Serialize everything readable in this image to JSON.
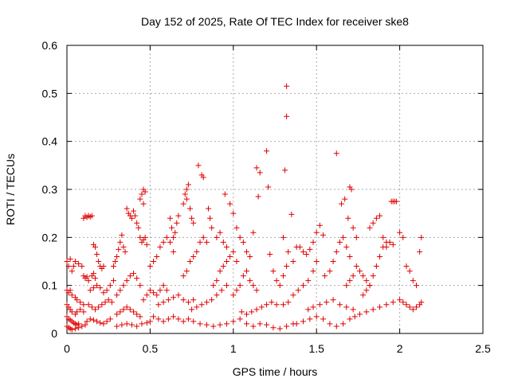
{
  "chart_data": {
    "type": "scatter",
    "title": "Day 152 of 2025, Rate Of TEC Index for receiver ske8",
    "xlabel": "GPS time / hours",
    "ylabel": "ROTI / TECUs",
    "xlim": [
      0,
      2.5
    ],
    "ylim": [
      0,
      0.6
    ],
    "xticks": [
      0,
      0.5,
      1,
      1.5,
      2,
      2.5
    ],
    "xtick_labels": [
      "0",
      "0.5",
      "1",
      "1.5",
      "2",
      "2.5"
    ],
    "yticks": [
      0,
      0.1,
      0.2,
      0.3,
      0.4,
      0.5,
      0.6
    ],
    "ytick_labels": [
      "0",
      "0.1",
      "0.2",
      "0.3",
      "0.4",
      "0.5",
      "0.6"
    ],
    "grid": true,
    "marker": "+",
    "color": "#e00000",
    "points": [
      [
        0.0,
        0.15
      ],
      [
        0.01,
        0.14
      ],
      [
        0.02,
        0.155
      ],
      [
        0.03,
        0.13
      ],
      [
        0.04,
        0.14
      ],
      [
        0.05,
        0.15
      ],
      [
        0.07,
        0.145
      ],
      [
        0.09,
        0.14
      ],
      [
        0.0,
        0.09
      ],
      [
        0.01,
        0.085
      ],
      [
        0.02,
        0.09
      ],
      [
        0.03,
        0.08
      ],
      [
        0.05,
        0.075
      ],
      [
        0.06,
        0.07
      ],
      [
        0.08,
        0.065
      ],
      [
        0.1,
        0.06
      ],
      [
        0.0,
        0.06
      ],
      [
        0.01,
        0.055
      ],
      [
        0.02,
        0.05
      ],
      [
        0.03,
        0.045
      ],
      [
        0.05,
        0.04
      ],
      [
        0.06,
        0.045
      ],
      [
        0.08,
        0.05
      ],
      [
        0.1,
        0.045
      ],
      [
        0.0,
        0.035
      ],
      [
        0.01,
        0.03
      ],
      [
        0.02,
        0.028
      ],
      [
        0.03,
        0.025
      ],
      [
        0.04,
        0.022
      ],
      [
        0.05,
        0.02
      ],
      [
        0.06,
        0.018
      ],
      [
        0.07,
        0.02
      ],
      [
        0.0,
        0.015
      ],
      [
        0.01,
        0.012
      ],
      [
        0.02,
        0.01
      ],
      [
        0.03,
        0.008
      ],
      [
        0.05,
        0.01
      ],
      [
        0.07,
        0.012
      ],
      [
        0.09,
        0.015
      ],
      [
        0.11,
        0.018
      ],
      [
        0.12,
        0.025
      ],
      [
        0.14,
        0.03
      ],
      [
        0.16,
        0.028
      ],
      [
        0.18,
        0.025
      ],
      [
        0.2,
        0.022
      ],
      [
        0.22,
        0.02
      ],
      [
        0.24,
        0.025
      ],
      [
        0.26,
        0.03
      ],
      [
        0.1,
        0.24
      ],
      [
        0.11,
        0.245
      ],
      [
        0.12,
        0.242
      ],
      [
        0.13,
        0.245
      ],
      [
        0.14,
        0.243
      ],
      [
        0.15,
        0.245
      ],
      [
        0.1,
        0.12
      ],
      [
        0.11,
        0.115
      ],
      [
        0.12,
        0.118
      ],
      [
        0.13,
        0.11
      ],
      [
        0.15,
        0.12
      ],
      [
        0.16,
        0.125
      ],
      [
        0.17,
        0.115
      ],
      [
        0.16,
        0.185
      ],
      [
        0.17,
        0.18
      ],
      [
        0.18,
        0.165
      ],
      [
        0.19,
        0.15
      ],
      [
        0.2,
        0.14
      ],
      [
        0.21,
        0.135
      ],
      [
        0.22,
        0.14
      ],
      [
        0.14,
        0.09
      ],
      [
        0.16,
        0.095
      ],
      [
        0.18,
        0.1
      ],
      [
        0.2,
        0.095
      ],
      [
        0.22,
        0.085
      ],
      [
        0.24,
        0.09
      ],
      [
        0.26,
        0.1
      ],
      [
        0.28,
        0.11
      ],
      [
        0.13,
        0.06
      ],
      [
        0.15,
        0.055
      ],
      [
        0.17,
        0.05
      ],
      [
        0.19,
        0.055
      ],
      [
        0.21,
        0.06
      ],
      [
        0.23,
        0.065
      ],
      [
        0.25,
        0.07
      ],
      [
        0.27,
        0.065
      ],
      [
        0.28,
        0.14
      ],
      [
        0.29,
        0.15
      ],
      [
        0.3,
        0.16
      ],
      [
        0.31,
        0.175
      ],
      [
        0.32,
        0.19
      ],
      [
        0.33,
        0.205
      ],
      [
        0.34,
        0.18
      ],
      [
        0.35,
        0.17
      ],
      [
        0.36,
        0.26
      ],
      [
        0.37,
        0.25
      ],
      [
        0.38,
        0.245
      ],
      [
        0.39,
        0.24
      ],
      [
        0.4,
        0.255
      ],
      [
        0.41,
        0.245
      ],
      [
        0.42,
        0.23
      ],
      [
        0.43,
        0.22
      ],
      [
        0.44,
        0.28
      ],
      [
        0.45,
        0.29
      ],
      [
        0.46,
        0.3
      ],
      [
        0.47,
        0.295
      ],
      [
        0.46,
        0.27
      ],
      [
        0.44,
        0.2
      ],
      [
        0.45,
        0.19
      ],
      [
        0.46,
        0.195
      ],
      [
        0.47,
        0.2
      ],
      [
        0.48,
        0.185
      ],
      [
        0.3,
        0.08
      ],
      [
        0.32,
        0.09
      ],
      [
        0.34,
        0.1
      ],
      [
        0.36,
        0.11
      ],
      [
        0.38,
        0.12
      ],
      [
        0.4,
        0.125
      ],
      [
        0.42,
        0.115
      ],
      [
        0.44,
        0.1
      ],
      [
        0.3,
        0.04
      ],
      [
        0.32,
        0.045
      ],
      [
        0.34,
        0.05
      ],
      [
        0.36,
        0.055
      ],
      [
        0.38,
        0.05
      ],
      [
        0.4,
        0.045
      ],
      [
        0.42,
        0.04
      ],
      [
        0.44,
        0.035
      ],
      [
        0.3,
        0.015
      ],
      [
        0.33,
        0.018
      ],
      [
        0.36,
        0.02
      ],
      [
        0.39,
        0.018
      ],
      [
        0.42,
        0.015
      ],
      [
        0.45,
        0.02
      ],
      [
        0.48,
        0.022
      ],
      [
        0.5,
        0.025
      ],
      [
        0.46,
        0.07
      ],
      [
        0.48,
        0.08
      ],
      [
        0.5,
        0.09
      ],
      [
        0.52,
        0.085
      ],
      [
        0.54,
        0.08
      ],
      [
        0.56,
        0.09
      ],
      [
        0.58,
        0.1
      ],
      [
        0.6,
        0.09
      ],
      [
        0.5,
        0.14
      ],
      [
        0.52,
        0.15
      ],
      [
        0.54,
        0.16
      ],
      [
        0.56,
        0.18
      ],
      [
        0.58,
        0.19
      ],
      [
        0.6,
        0.2
      ],
      [
        0.62,
        0.19
      ],
      [
        0.64,
        0.17
      ],
      [
        0.52,
        0.035
      ],
      [
        0.55,
        0.03
      ],
      [
        0.58,
        0.025
      ],
      [
        0.61,
        0.03
      ],
      [
        0.64,
        0.035
      ],
      [
        0.67,
        0.03
      ],
      [
        0.7,
        0.025
      ],
      [
        0.73,
        0.03
      ],
      [
        0.55,
        0.06
      ],
      [
        0.58,
        0.065
      ],
      [
        0.61,
        0.07
      ],
      [
        0.64,
        0.075
      ],
      [
        0.67,
        0.08
      ],
      [
        0.7,
        0.07
      ],
      [
        0.73,
        0.065
      ],
      [
        0.76,
        0.07
      ],
      [
        0.62,
        0.24
      ],
      [
        0.63,
        0.22
      ],
      [
        0.64,
        0.2
      ],
      [
        0.65,
        0.21
      ],
      [
        0.66,
        0.23
      ],
      [
        0.67,
        0.245
      ],
      [
        0.7,
        0.27
      ],
      [
        0.71,
        0.29
      ],
      [
        0.72,
        0.3
      ],
      [
        0.73,
        0.31
      ],
      [
        0.72,
        0.28
      ],
      [
        0.74,
        0.26
      ],
      [
        0.75,
        0.24
      ],
      [
        0.76,
        0.23
      ],
      [
        0.7,
        0.12
      ],
      [
        0.72,
        0.13
      ],
      [
        0.74,
        0.15
      ],
      [
        0.76,
        0.16
      ],
      [
        0.78,
        0.17
      ],
      [
        0.8,
        0.19
      ],
      [
        0.82,
        0.2
      ],
      [
        0.84,
        0.19
      ],
      [
        0.75,
        0.05
      ],
      [
        0.78,
        0.055
      ],
      [
        0.81,
        0.06
      ],
      [
        0.84,
        0.065
      ],
      [
        0.87,
        0.07
      ],
      [
        0.9,
        0.08
      ],
      [
        0.93,
        0.09
      ],
      [
        0.96,
        0.1
      ],
      [
        0.76,
        0.025
      ],
      [
        0.8,
        0.02
      ],
      [
        0.84,
        0.018
      ],
      [
        0.88,
        0.015
      ],
      [
        0.92,
        0.018
      ],
      [
        0.96,
        0.02
      ],
      [
        1.0,
        0.025
      ],
      [
        1.04,
        0.03
      ],
      [
        0.79,
        0.35
      ],
      [
        0.81,
        0.33
      ],
      [
        0.82,
        0.325
      ],
      [
        0.85,
        0.26
      ],
      [
        0.86,
        0.24
      ],
      [
        0.87,
        0.22
      ],
      [
        0.88,
        0.1
      ],
      [
        0.9,
        0.11
      ],
      [
        0.92,
        0.13
      ],
      [
        0.94,
        0.14
      ],
      [
        0.96,
        0.15
      ],
      [
        0.98,
        0.16
      ],
      [
        1.0,
        0.17
      ],
      [
        1.02,
        0.15
      ],
      [
        0.9,
        0.2
      ],
      [
        0.92,
        0.21
      ],
      [
        0.94,
        0.19
      ],
      [
        0.96,
        0.18
      ],
      [
        0.98,
        0.27
      ],
      [
        1.0,
        0.25
      ],
      [
        1.02,
        0.22
      ],
      [
        0.95,
        0.29
      ],
      [
        1.0,
        0.08
      ],
      [
        1.02,
        0.09
      ],
      [
        1.04,
        0.1
      ],
      [
        1.06,
        0.12
      ],
      [
        1.08,
        0.13
      ],
      [
        1.1,
        0.11
      ],
      [
        1.12,
        0.1
      ],
      [
        1.14,
        0.09
      ],
      [
        1.04,
        0.2
      ],
      [
        1.06,
        0.19
      ],
      [
        1.08,
        0.17
      ],
      [
        1.1,
        0.16
      ],
      [
        1.12,
        0.21
      ],
      [
        1.14,
        0.345
      ],
      [
        1.16,
        0.335
      ],
      [
        1.15,
        0.285
      ],
      [
        1.05,
        0.045
      ],
      [
        1.08,
        0.04
      ],
      [
        1.11,
        0.045
      ],
      [
        1.14,
        0.05
      ],
      [
        1.17,
        0.055
      ],
      [
        1.2,
        0.06
      ],
      [
        1.23,
        0.065
      ],
      [
        1.26,
        0.06
      ],
      [
        1.08,
        0.02
      ],
      [
        1.12,
        0.015
      ],
      [
        1.16,
        0.02
      ],
      [
        1.2,
        0.018
      ],
      [
        1.24,
        0.012
      ],
      [
        1.28,
        0.01
      ],
      [
        1.32,
        0.015
      ],
      [
        1.36,
        0.02
      ],
      [
        1.2,
        0.38
      ],
      [
        1.21,
        0.305
      ],
      [
        1.22,
        0.165
      ],
      [
        1.24,
        0.13
      ],
      [
        1.26,
        0.11
      ],
      [
        1.28,
        0.1
      ],
      [
        1.3,
        0.12
      ],
      [
        1.32,
        0.14
      ],
      [
        1.32,
        0.515
      ],
      [
        1.32,
        0.452
      ],
      [
        1.31,
        0.34
      ],
      [
        1.35,
        0.248
      ],
      [
        1.3,
        0.2
      ],
      [
        1.33,
        0.17
      ],
      [
        1.36,
        0.15
      ],
      [
        1.38,
        0.18
      ],
      [
        1.3,
        0.06
      ],
      [
        1.33,
        0.065
      ],
      [
        1.36,
        0.08
      ],
      [
        1.39,
        0.09
      ],
      [
        1.42,
        0.1
      ],
      [
        1.45,
        0.11
      ],
      [
        1.48,
        0.13
      ],
      [
        1.5,
        0.15
      ],
      [
        1.4,
        0.18
      ],
      [
        1.42,
        0.17
      ],
      [
        1.44,
        0.165
      ],
      [
        1.46,
        0.175
      ],
      [
        1.48,
        0.19
      ],
      [
        1.5,
        0.21
      ],
      [
        1.52,
        0.225
      ],
      [
        1.54,
        0.205
      ],
      [
        1.38,
        0.02
      ],
      [
        1.42,
        0.025
      ],
      [
        1.46,
        0.03
      ],
      [
        1.5,
        0.035
      ],
      [
        1.54,
        0.03
      ],
      [
        1.58,
        0.02
      ],
      [
        1.62,
        0.015
      ],
      [
        1.66,
        0.02
      ],
      [
        1.45,
        0.05
      ],
      [
        1.48,
        0.055
      ],
      [
        1.52,
        0.06
      ],
      [
        1.56,
        0.065
      ],
      [
        1.6,
        0.07
      ],
      [
        1.64,
        0.06
      ],
      [
        1.68,
        0.055
      ],
      [
        1.72,
        0.05
      ],
      [
        1.55,
        0.12
      ],
      [
        1.58,
        0.13
      ],
      [
        1.6,
        0.15
      ],
      [
        1.62,
        0.17
      ],
      [
        1.64,
        0.19
      ],
      [
        1.66,
        0.2
      ],
      [
        1.68,
        0.18
      ],
      [
        1.7,
        0.16
      ],
      [
        1.62,
        0.375
      ],
      [
        1.65,
        0.27
      ],
      [
        1.67,
        0.28
      ],
      [
        1.69,
        0.24
      ],
      [
        1.7,
        0.305
      ],
      [
        1.71,
        0.3
      ],
      [
        1.72,
        0.22
      ],
      [
        1.74,
        0.2
      ],
      [
        1.68,
        0.1
      ],
      [
        1.7,
        0.11
      ],
      [
        1.72,
        0.12
      ],
      [
        1.74,
        0.14
      ],
      [
        1.76,
        0.13
      ],
      [
        1.78,
        0.12
      ],
      [
        1.8,
        0.11
      ],
      [
        1.82,
        0.1
      ],
      [
        1.7,
        0.03
      ],
      [
        1.73,
        0.035
      ],
      [
        1.76,
        0.04
      ],
      [
        1.8,
        0.045
      ],
      [
        1.84,
        0.05
      ],
      [
        1.88,
        0.055
      ],
      [
        1.92,
        0.06
      ],
      [
        1.96,
        0.065
      ],
      [
        1.78,
        0.08
      ],
      [
        1.8,
        0.09
      ],
      [
        1.82,
        0.1
      ],
      [
        1.84,
        0.12
      ],
      [
        1.86,
        0.14
      ],
      [
        1.88,
        0.16
      ],
      [
        1.9,
        0.18
      ],
      [
        1.92,
        0.19
      ],
      [
        1.82,
        0.22
      ],
      [
        1.84,
        0.23
      ],
      [
        1.86,
        0.24
      ],
      [
        1.88,
        0.245
      ],
      [
        1.9,
        0.2
      ],
      [
        1.92,
        0.18
      ],
      [
        1.94,
        0.19
      ],
      [
        1.96,
        0.185
      ],
      [
        1.95,
        0.275
      ],
      [
        1.96,
        0.275
      ],
      [
        1.97,
        0.275
      ],
      [
        1.98,
        0.275
      ],
      [
        2.0,
        0.21
      ],
      [
        2.02,
        0.2
      ],
      [
        2.04,
        0.14
      ],
      [
        2.06,
        0.13
      ],
      [
        2.08,
        0.11
      ],
      [
        2.1,
        0.1
      ],
      [
        2.12,
        0.17
      ],
      [
        2.13,
        0.2
      ],
      [
        2.0,
        0.07
      ],
      [
        2.02,
        0.065
      ],
      [
        2.04,
        0.06
      ],
      [
        2.06,
        0.055
      ],
      [
        2.08,
        0.05
      ],
      [
        2.1,
        0.055
      ],
      [
        2.12,
        0.06
      ],
      [
        2.13,
        0.065
      ]
    ]
  }
}
